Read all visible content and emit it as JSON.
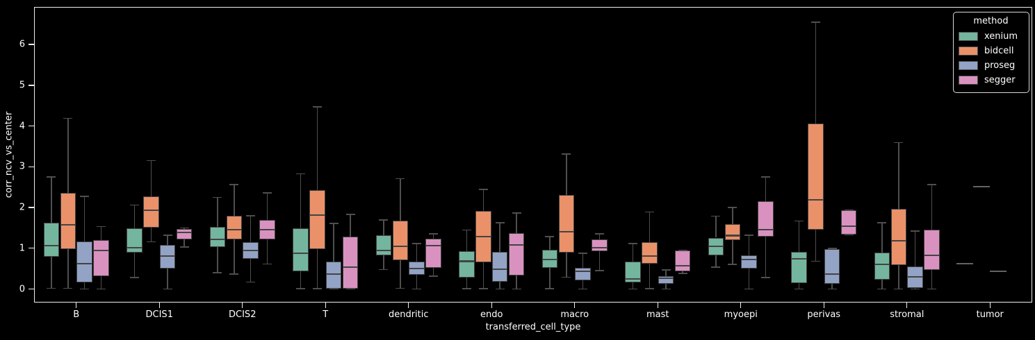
{
  "figure": {
    "background": "#000000",
    "spine_color": "#efefef",
    "box_edge_color": "#434343",
    "whisker_color": "#4f4f4f",
    "text_color": "#ffffff"
  },
  "y_axis": {
    "label": "corr_ncv_vs_center",
    "ticks": [
      0,
      1,
      2,
      3,
      4,
      5,
      6
    ]
  },
  "x_axis": {
    "label": "transferred_cell_type",
    "categories": [
      "B",
      "DCIS1",
      "DCIS2",
      "T",
      "dendritic",
      "endo",
      "macro",
      "mast",
      "myoepi",
      "perivas",
      "stromal",
      "tumor"
    ]
  },
  "legend": {
    "title": "method",
    "items": [
      {
        "label": "xenium",
        "color": "#74b59e"
      },
      {
        "label": "bidcell",
        "color": "#ea9169"
      },
      {
        "label": "proseg",
        "color": "#93a3c5"
      },
      {
        "label": "segger",
        "color": "#d992c0"
      }
    ]
  },
  "chart_data": {
    "type": "box",
    "title": "",
    "xlabel": "transferred_cell_type",
    "ylabel": "corr_ncv_vs_center",
    "ylim": [
      -0.315,
      6.905
    ],
    "yticks": [
      0,
      1,
      2,
      3,
      4,
      5,
      6
    ],
    "grid": false,
    "legend_title": "method",
    "legend_position": "upper right",
    "categories": [
      "B",
      "DCIS1",
      "DCIS2",
      "T",
      "dendritic",
      "endo",
      "macro",
      "mast",
      "myoepi",
      "perivas",
      "stromal",
      "tumor"
    ],
    "stats_order": [
      "whisker_low",
      "q1",
      "median",
      "q3",
      "whisker_high"
    ],
    "series": [
      {
        "name": "xenium",
        "color": "#74b59e",
        "boxes": [
          [
            0.02,
            0.8,
            1.07,
            1.62,
            2.75
          ],
          [
            0.28,
            0.9,
            1.02,
            1.49,
            2.06
          ],
          [
            0.4,
            1.03,
            1.22,
            1.53,
            2.25
          ],
          [
            0.01,
            0.44,
            0.88,
            1.49,
            2.83
          ],
          [
            0.48,
            0.83,
            0.94,
            1.32,
            1.69
          ],
          [
            0.01,
            0.28,
            0.68,
            0.92,
            1.45
          ],
          [
            0.01,
            0.52,
            0.72,
            0.97,
            1.29
          ],
          [
            0.0,
            0.16,
            0.24,
            0.68,
            1.12
          ],
          [
            0.54,
            0.82,
            1.05,
            1.26,
            1.79
          ],
          [
            0.0,
            0.14,
            0.74,
            0.91,
            1.67
          ],
          [
            0.0,
            0.23,
            0.6,
            0.89,
            1.63
          ],
          [
            0.63,
            0.63,
            0.63,
            0.63,
            0.63
          ]
        ]
      },
      {
        "name": "bidcell",
        "color": "#ea9169",
        "boxes": [
          [
            0.02,
            0.98,
            1.57,
            2.36,
            4.19
          ],
          [
            1.16,
            1.5,
            1.93,
            2.28,
            3.15
          ],
          [
            0.37,
            1.22,
            1.46,
            1.8,
            2.56
          ],
          [
            0.01,
            0.98,
            1.81,
            2.42,
            4.47
          ],
          [
            0.02,
            0.7,
            1.05,
            1.68,
            2.71
          ],
          [
            0.01,
            0.65,
            1.28,
            1.91,
            2.44
          ],
          [
            0.29,
            0.89,
            1.4,
            2.3,
            3.31
          ],
          [
            0.01,
            0.62,
            0.81,
            1.15,
            1.89
          ],
          [
            0.6,
            1.2,
            1.31,
            1.6,
            2.0
          ],
          [
            0.68,
            1.46,
            2.19,
            4.06,
            6.55
          ],
          [
            0.0,
            0.58,
            1.18,
            1.96,
            3.59
          ],
          [
            2.52,
            2.52,
            2.52,
            2.52,
            2.52
          ]
        ]
      },
      {
        "name": "proseg",
        "color": "#93a3c5",
        "boxes": [
          [
            0.0,
            0.17,
            0.62,
            1.16,
            2.27
          ],
          [
            0.0,
            0.5,
            0.81,
            1.08,
            1.32
          ],
          [
            0.17,
            0.74,
            0.95,
            1.15,
            1.8
          ],
          [
            0.0,
            0.01,
            0.37,
            0.68,
            1.61
          ],
          [
            0.0,
            0.35,
            0.5,
            0.67,
            1.12
          ],
          [
            0.0,
            0.18,
            0.48,
            0.91,
            1.63
          ],
          [
            0.0,
            0.22,
            0.43,
            0.52,
            0.88
          ],
          [
            0.0,
            0.13,
            0.26,
            0.31,
            0.47
          ],
          [
            0.0,
            0.51,
            0.73,
            0.83,
            1.32
          ],
          [
            0.0,
            0.13,
            0.36,
            0.98,
            1.0
          ],
          [
            0.0,
            0.02,
            0.3,
            0.56,
            1.42
          ],
          [
            0.43,
            0.43,
            0.43,
            0.43,
            0.43
          ]
        ]
      },
      {
        "name": "segger",
        "color": "#d992c0",
        "boxes": [
          [
            0.0,
            0.31,
            0.94,
            1.2,
            1.53
          ],
          [
            1.03,
            1.22,
            1.39,
            1.47,
            1.5
          ],
          [
            0.61,
            1.22,
            1.45,
            1.69,
            2.36
          ],
          [
            0.01,
            0.01,
            0.53,
            1.28,
            1.83
          ],
          [
            0.31,
            0.52,
            1.06,
            1.24,
            1.35
          ],
          [
            0.0,
            0.33,
            1.08,
            1.37,
            1.86
          ],
          [
            0.45,
            0.93,
            1.01,
            1.21,
            1.35
          ],
          [
            0.38,
            0.43,
            0.57,
            0.95,
            0.95
          ],
          [
            0.28,
            1.29,
            1.45,
            2.16,
            2.75
          ],
          [
            1.33,
            1.33,
            1.54,
            1.93,
            1.93
          ],
          [
            0.0,
            0.47,
            0.83,
            1.45,
            2.56
          ],
          null
        ]
      }
    ]
  }
}
